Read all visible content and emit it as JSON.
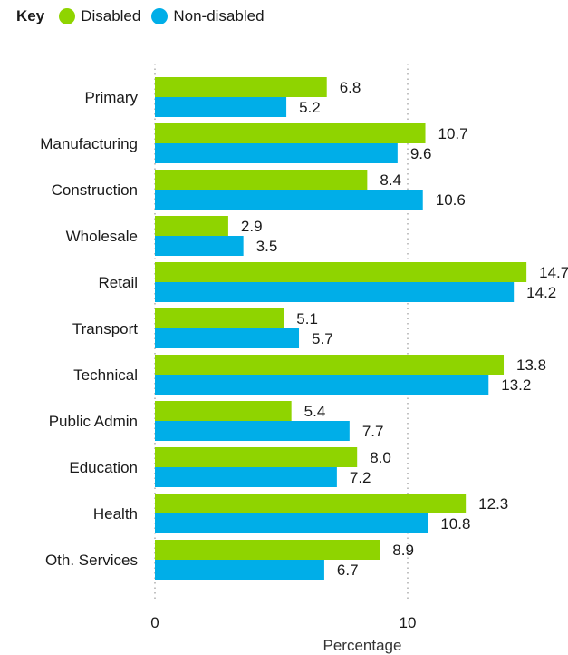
{
  "legend": {
    "key_label": "Key",
    "items": [
      {
        "label": "Disabled",
        "color": "#8fd400"
      },
      {
        "label": "Non-disabled",
        "color": "#00aee8"
      }
    ]
  },
  "chart_data": {
    "type": "bar",
    "orientation": "horizontal",
    "categories": [
      "Primary",
      "Manufacturing",
      "Construction",
      "Wholesale",
      "Retail",
      "Transport",
      "Technical",
      "Public Admin",
      "Education",
      "Health",
      "Oth. Services"
    ],
    "series": [
      {
        "name": "Disabled",
        "color": "#8fd400",
        "values": [
          6.8,
          10.7,
          8.4,
          2.9,
          14.7,
          5.1,
          13.8,
          5.4,
          8.0,
          12.3,
          8.9
        ]
      },
      {
        "name": "Non-disabled",
        "color": "#00aee8",
        "values": [
          5.2,
          9.6,
          10.6,
          3.5,
          14.2,
          5.7,
          13.2,
          7.7,
          7.2,
          10.8,
          6.7
        ]
      }
    ],
    "xlabel": "Percentage",
    "ylabel": "",
    "xticks": [
      0,
      10
    ],
    "xlim": [
      0,
      16
    ],
    "grid": "vertical dotted at ticks",
    "legend_position": "top-left"
  }
}
